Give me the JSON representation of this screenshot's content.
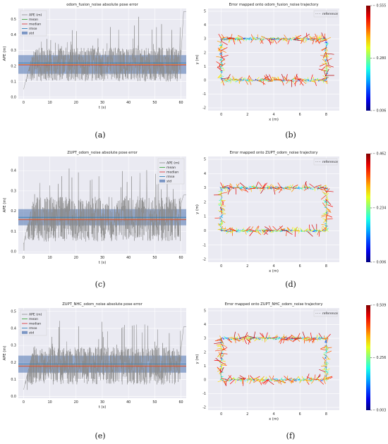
{
  "captions": [
    "(a)",
    "(b)",
    "(c)",
    "(d)",
    "(e)",
    "(f)"
  ],
  "legend_ape": [
    "APE (m)",
    "mean",
    "median",
    "rmse",
    "std"
  ],
  "legend_traj": "reference",
  "colors": {
    "ape": "#8c8c8c",
    "mean": "#2ca02c",
    "median": "#d62728",
    "rmse": "#1f77b4",
    "std": "#4c72b0",
    "orange": "#e07b39"
  },
  "chart_data": [
    {
      "type": "line",
      "title": "odom_fusion_noise absolute pose error",
      "xlabel": "t (s)",
      "ylabel": "APE (m)",
      "xlim": [
        -2,
        62
      ],
      "ylim": [
        -0.01,
        0.57
      ],
      "xticks": [
        0,
        10,
        20,
        30,
        40,
        50,
        60
      ],
      "yticks": [
        0.0,
        0.1,
        0.2,
        0.3,
        0.4,
        0.5
      ],
      "series": [
        {
          "name": "APE (m)",
          "x": [
            0,
            5,
            10,
            15,
            20,
            25,
            30,
            35,
            40,
            45,
            50,
            55,
            60
          ],
          "values": [
            0.05,
            0.38,
            0.45,
            0.52,
            0.48,
            0.44,
            0.5,
            0.42,
            0.47,
            0.53,
            0.49,
            0.45,
            0.55
          ]
        },
        {
          "name": "mean",
          "value": 0.21
        },
        {
          "name": "median",
          "value": 0.21
        },
        {
          "name": "rmse",
          "value": 0.22
        },
        {
          "name": "std",
          "range": [
            0.15,
            0.27
          ]
        }
      ],
      "legend": "top-left",
      "grid": true
    },
    {
      "type": "line",
      "title": "Error mapped onto odom_fusion_noise trajectory",
      "xlabel": "x (m)",
      "ylabel": "y (m)",
      "xlim": [
        -1,
        9
      ],
      "ylim": [
        -2.2,
        5.2
      ],
      "xticks": [
        0,
        2,
        4,
        6,
        8
      ],
      "yticks": [
        -2,
        -1,
        0,
        1,
        2,
        3,
        4,
        5
      ],
      "trajectory": {
        "x": [
          0,
          8,
          8,
          0,
          0
        ],
        "y": [
          0,
          0,
          3,
          3,
          0
        ]
      },
      "colorbar": {
        "min": 0.006,
        "mid": 0.28,
        "max": 0.555,
        "labels": [
          "0.006",
          "0.280",
          "0.555"
        ]
      },
      "legend": "top-right",
      "grid": true
    },
    {
      "type": "line",
      "title": "ZUPT_odom_noise absolute pose error",
      "xlabel": "t (s)",
      "ylabel": "APE (m)",
      "xlim": [
        -2,
        62
      ],
      "ylim": [
        -0.01,
        0.47
      ],
      "xticks": [
        0,
        10,
        20,
        30,
        40,
        50,
        60
      ],
      "yticks": [
        0.0,
        0.1,
        0.2,
        0.3,
        0.4
      ],
      "series": [
        {
          "name": "APE (m)",
          "x": [
            0,
            5,
            10,
            15,
            20,
            25,
            30,
            35,
            40,
            45,
            50,
            55,
            60
          ],
          "values": [
            0.04,
            0.33,
            0.37,
            0.42,
            0.4,
            0.35,
            0.38,
            0.44,
            0.36,
            0.41,
            0.39,
            0.36,
            0.28
          ]
        },
        {
          "name": "mean",
          "value": 0.16
        },
        {
          "name": "median",
          "value": 0.16
        },
        {
          "name": "rmse",
          "value": 0.17
        },
        {
          "name": "std",
          "range": [
            0.13,
            0.21
          ]
        }
      ],
      "legend": "top-right",
      "grid": true
    },
    {
      "type": "line",
      "title": "Error mapped onto ZUPT_odom_noise trajectory",
      "xlabel": "x (m)",
      "ylabel": "y (m)",
      "xlim": [
        -1,
        9
      ],
      "ylim": [
        -2.2,
        5.2
      ],
      "xticks": [
        0,
        2,
        4,
        6,
        8
      ],
      "yticks": [
        -2,
        -1,
        0,
        1,
        2,
        3,
        4,
        5
      ],
      "trajectory": {
        "x": [
          0,
          8,
          8,
          0,
          0
        ],
        "y": [
          0,
          0,
          3,
          3,
          0
        ]
      },
      "colorbar": {
        "min": 0.006,
        "mid": 0.234,
        "max": 0.462,
        "labels": [
          "0.006",
          "0.234",
          "0.462"
        ]
      },
      "legend": "top-right",
      "grid": true
    },
    {
      "type": "line",
      "title": "ZUPT_NHC_odom_noise absolute pose error",
      "xlabel": "t (s)",
      "ylabel": "APE (m)",
      "xlim": [
        -2,
        62
      ],
      "ylim": [
        -0.01,
        0.52
      ],
      "xticks": [
        0,
        10,
        20,
        30,
        40,
        50,
        60
      ],
      "yticks": [
        0.0,
        0.1,
        0.2,
        0.3,
        0.4,
        0.5
      ],
      "series": [
        {
          "name": "APE (m)",
          "x": [
            0,
            5,
            10,
            15,
            20,
            25,
            30,
            35,
            40,
            45,
            50,
            55,
            60
          ],
          "values": [
            0.04,
            0.36,
            0.4,
            0.46,
            0.42,
            0.38,
            0.44,
            0.5,
            0.41,
            0.43,
            0.4,
            0.37,
            0.41
          ]
        },
        {
          "name": "mean",
          "value": 0.18
        },
        {
          "name": "median",
          "value": 0.18
        },
        {
          "name": "rmse",
          "value": 0.19
        },
        {
          "name": "std",
          "range": [
            0.14,
            0.24
          ]
        }
      ],
      "legend": "top-left",
      "grid": true
    },
    {
      "type": "line",
      "title": "Error mapped onto ZUPT_NHC_odom_noise trajectory",
      "xlabel": "x (m)",
      "ylabel": "y (m)",
      "xlim": [
        -1,
        9
      ],
      "ylim": [
        -2.2,
        5.2
      ],
      "xticks": [
        0,
        2,
        4,
        6,
        8
      ],
      "yticks": [
        -2,
        -1,
        0,
        1,
        2,
        3,
        4,
        5
      ],
      "trajectory": {
        "x": [
          0,
          8,
          8,
          0,
          0
        ],
        "y": [
          0,
          0,
          3,
          3,
          0
        ]
      },
      "colorbar": {
        "min": 0.003,
        "mid": 0.256,
        "max": 0.509,
        "labels": [
          "0.003",
          "0.256",
          "0.509"
        ]
      },
      "legend": "top-right",
      "grid": true
    }
  ]
}
